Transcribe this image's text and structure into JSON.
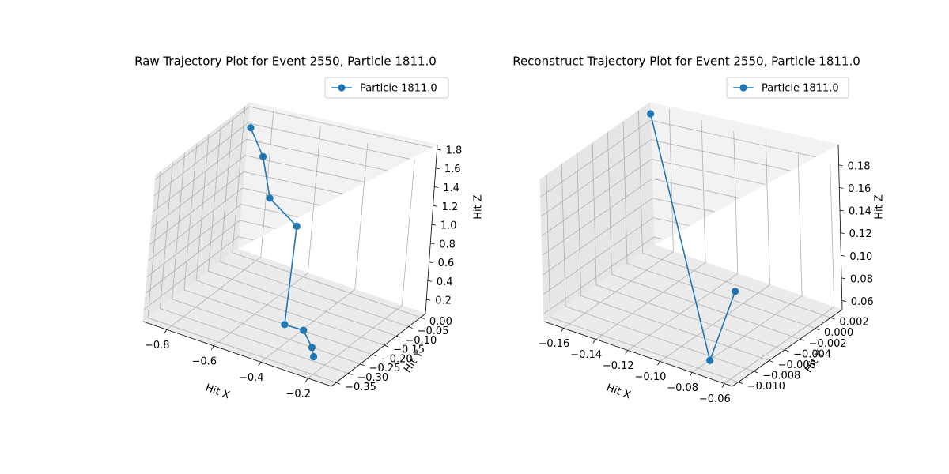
{
  "chart_data": [
    {
      "type": "line",
      "title": "Raw Trajectory Plot for Event 2550, Particle 1811.0",
      "xlabel": "Hit X",
      "ylabel": "Hit Y",
      "zlabel": "Hit Z",
      "x_ticks": [
        "−0.8",
        "−0.6",
        "−0.4",
        "−0.2"
      ],
      "y_ticks": [
        "0.00",
        "−0.05",
        "−0.10",
        "−0.15",
        "−0.20",
        "−0.25",
        "−0.30",
        "−0.35"
      ],
      "z_ticks": [
        "0.2",
        "0.4",
        "0.6",
        "0.8",
        "1.0",
        "1.2",
        "1.4",
        "1.6",
        "1.8"
      ],
      "legend_position": "top-right",
      "grid": true,
      "series": [
        {
          "name": "Particle 1811.0",
          "color": "#1f77b4",
          "marker": "circle",
          "points": [
            {
              "x": -0.86,
              "y": -0.01,
              "z": 1.65
            },
            {
              "x": -0.78,
              "y": -0.03,
              "z": 1.42
            },
            {
              "x": -0.7,
              "y": -0.07,
              "z": 1.08
            },
            {
              "x": -0.56,
              "y": -0.09,
              "z": 0.92
            },
            {
              "x": -0.38,
              "y": -0.3,
              "z": 0.37
            },
            {
              "x": -0.3,
              "y": -0.3,
              "z": 0.38
            },
            {
              "x": -0.25,
              "y": -0.31,
              "z": 0.24
            },
            {
              "x": -0.23,
              "y": -0.32,
              "z": 0.17
            }
          ]
        }
      ]
    },
    {
      "type": "line",
      "title": "Reconstruct Trajectory Plot for Event 2550, Particle 1811.0",
      "xlabel": "Hit X",
      "ylabel": "Hit Y",
      "zlabel": "Hit Z",
      "x_ticks": [
        "−0.16",
        "−0.14",
        "−0.12",
        "−0.10",
        "−0.08",
        "−0.06"
      ],
      "y_ticks": [
        "0.002",
        "0.000",
        "−0.002",
        "−0.004",
        "−0.006",
        "−0.008",
        "−0.010"
      ],
      "z_ticks": [
        "0.06",
        "0.08",
        "0.10",
        "0.12",
        "0.14",
        "0.16",
        "0.18"
      ],
      "legend_position": "top-right",
      "grid": true,
      "series": [
        {
          "name": "Particle 1811.0",
          "color": "#1f77b4",
          "marker": "circle",
          "points": [
            {
              "x": -0.167,
              "y": 0.0025,
              "z": 0.195
            },
            {
              "x": -0.075,
              "y": -0.0095,
              "z": 0.06
            },
            {
              "x": -0.085,
              "y": -0.004,
              "z": 0.095
            }
          ]
        }
      ]
    }
  ]
}
